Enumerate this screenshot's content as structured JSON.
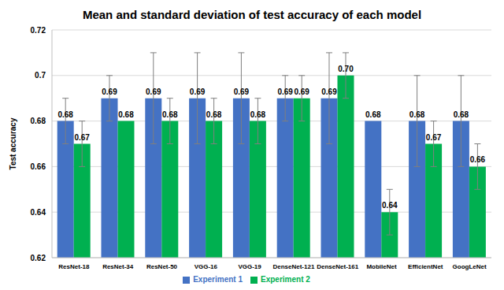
{
  "chart_data": {
    "type": "bar",
    "title": "Mean and standard deviation of test accuracy of each model",
    "y_label": "Test accuracy",
    "categories": [
      "ResNet-18",
      "ResNet-34",
      "ResNet-50",
      "VGG-16",
      "VGG-19",
      "DenseNet-121",
      "DenseNet-161",
      "MobileNet",
      "EfficientNet",
      "GoogLeNet"
    ],
    "series": [
      {
        "name": "Experiment 1",
        "color": "#4472c4",
        "values": [
          0.68,
          0.69,
          0.69,
          0.69,
          0.69,
          0.69,
          0.69,
          0.68,
          0.68,
          0.68
        ],
        "value_labels": [
          "0.68",
          "0.69",
          "0.69",
          "0.69",
          "0.69",
          "0.69",
          "0.69",
          "0.68",
          "0.68",
          "0.68"
        ],
        "error": [
          0.01,
          0.01,
          0.02,
          0.02,
          0.02,
          0.01,
          0.02,
          0,
          0.02,
          0.02
        ]
      },
      {
        "name": "Experiment 2",
        "color": "#00b050",
        "values": [
          0.67,
          0.68,
          0.68,
          0.68,
          0.68,
          0.69,
          0.7,
          0.64,
          0.67,
          0.66
        ],
        "value_labels": [
          "0.67",
          "0.68",
          "0.68",
          "0.68",
          "0.68",
          "0.69",
          "0.70",
          "0.64",
          "0.67",
          "0.66"
        ],
        "error": [
          0.01,
          0,
          0.01,
          0.01,
          0.01,
          0.01,
          0.01,
          0.01,
          0.01,
          0.01
        ]
      }
    ],
    "ylim": [
      0.62,
      0.72
    ],
    "yticks": [
      0.62,
      0.64,
      0.66,
      0.68,
      0.7,
      0.72
    ],
    "grid": true,
    "legend": "bottom",
    "data_labels": true
  }
}
